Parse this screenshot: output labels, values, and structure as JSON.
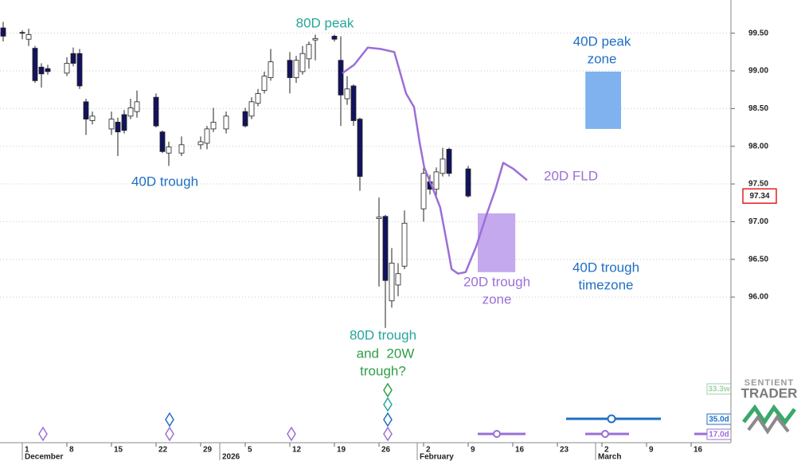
{
  "chart_data": {
    "type": "candlestick",
    "x": [
      -3,
      0,
      1,
      2,
      3,
      4,
      7,
      8,
      9,
      10,
      11,
      14,
      15,
      16,
      17,
      18,
      21,
      22,
      23,
      25,
      28,
      29,
      30,
      32,
      35,
      36,
      37,
      38,
      39,
      42,
      43,
      44,
      45,
      46,
      49,
      50,
      51,
      52,
      53,
      56,
      57,
      58,
      59,
      60,
      63,
      64,
      65,
      66,
      67,
      70
    ],
    "open": [
      99.57,
      99.51,
      99.42,
      99.3,
      99.05,
      99.03,
      98.97,
      99.23,
      99.23,
      98.59,
      98.34,
      98.23,
      98.32,
      98.42,
      98.4,
      98.46,
      98.65,
      98.19,
      97.91,
      97.91,
      98.02,
      98.04,
      98.23,
      98.23,
      98.46,
      98.4,
      98.57,
      98.74,
      98.91,
      99.14,
      98.91,
      98.99,
      99.16,
      99.41,
      99.46,
      99.14,
      98.63,
      98.8,
      98.36,
      97.04,
      97.07,
      95.95,
      96.16,
      96.41,
      97.17,
      97.53,
      97.43,
      97.64,
      97.96,
      97.7
    ],
    "high": [
      99.65,
      99.54,
      99.56,
      99.33,
      99.1,
      99.08,
      99.18,
      99.31,
      99.29,
      98.63,
      98.46,
      98.46,
      98.38,
      98.48,
      98.63,
      98.74,
      98.7,
      98.21,
      98.06,
      98.13,
      98.13,
      98.27,
      98.51,
      98.46,
      98.51,
      98.65,
      98.76,
      98.99,
      99.29,
      99.25,
      99.2,
      99.33,
      99.39,
      99.48,
      99.48,
      99.46,
      98.93,
      98.82,
      98.38,
      97.32,
      97.09,
      96.65,
      96.45,
      97.15,
      97.74,
      97.62,
      97.72,
      97.98,
      97.98,
      97.74
    ],
    "low": [
      99.39,
      99.42,
      99.33,
      98.84,
      98.78,
      98.95,
      98.93,
      99.06,
      98.76,
      98.15,
      98.29,
      98.15,
      97.87,
      98.17,
      98.36,
      98.38,
      98.25,
      97.91,
      97.74,
      97.87,
      97.96,
      97.96,
      98.19,
      98.17,
      98.25,
      98.36,
      98.53,
      98.7,
      98.87,
      98.7,
      98.84,
      98.95,
      99.03,
      99.14,
      99.39,
      98.27,
      98.55,
      98.27,
      97.41,
      96.14,
      95.59,
      95.86,
      96.01,
      96.37,
      97.0,
      97.36,
      97.32,
      97.6,
      97.6,
      97.32
    ],
    "close": [
      99.46,
      99.5,
      99.48,
      98.87,
      98.96,
      98.99,
      99.1,
      99.1,
      98.8,
      98.36,
      98.4,
      98.36,
      98.19,
      98.21,
      98.51,
      98.59,
      98.27,
      97.93,
      97.99,
      98.02,
      98.06,
      98.23,
      98.32,
      98.4,
      98.27,
      98.59,
      98.7,
      98.93,
      99.12,
      98.91,
      99.14,
      99.23,
      99.35,
      99.43,
      99.42,
      98.68,
      98.76,
      98.34,
      97.6,
      97.06,
      96.22,
      96.45,
      96.31,
      96.98,
      97.64,
      97.43,
      97.66,
      97.83,
      97.64,
      97.34
    ],
    "up_color": "#ffffff",
    "down_color": "#12125e",
    "xlim": [
      -3.5,
      111.25
    ],
    "ylim": [
      94.1,
      99.94
    ],
    "grid": true,
    "yticks": [
      {
        "value": 96,
        "label": "96.00"
      },
      {
        "value": 96.5,
        "label": "96.50"
      },
      {
        "value": 97,
        "label": "97.00"
      },
      {
        "value": 97.5,
        "label": "97.50"
      },
      {
        "value": 98,
        "label": "98.00"
      },
      {
        "value": 98.5,
        "label": "98.50"
      },
      {
        "value": 99,
        "label": "99.00"
      },
      {
        "value": 99.5,
        "label": "99.50"
      }
    ],
    "xticks": [
      {
        "value": 0,
        "label": "1"
      },
      {
        "value": 7,
        "label": "8"
      },
      {
        "value": 14,
        "label": "15"
      },
      {
        "value": 21,
        "label": "22"
      },
      {
        "value": 28,
        "label": "29"
      },
      {
        "value": 35,
        "label": "5"
      },
      {
        "value": 42,
        "label": "12"
      },
      {
        "value": 49,
        "label": "19"
      },
      {
        "value": 56,
        "label": "26"
      },
      {
        "value": 63,
        "label": "2"
      },
      {
        "value": 70,
        "label": "9"
      },
      {
        "value": 77,
        "label": "16"
      },
      {
        "value": 84,
        "label": "23"
      },
      {
        "value": 91,
        "label": "2"
      },
      {
        "value": 98,
        "label": "9"
      },
      {
        "value": 105,
        "label": "16"
      }
    ],
    "month_ticks": [
      {
        "value": 0,
        "label": "December"
      },
      {
        "value": 31,
        "label": "2026"
      },
      {
        "value": 62,
        "label": "February"
      },
      {
        "value": 90,
        "label": "March"
      }
    ],
    "last_price": 97.34,
    "fld": {
      "name": "20D FLD",
      "color": "#9b6fd6",
      "x": [
        50.25,
        52.1,
        54.25,
        56.25,
        58.4,
        60.25,
        61.5,
        62.4,
        63.1,
        64.6,
        65.6,
        66.5,
        67.4,
        68.4,
        69.6,
        71.25,
        73.0,
        74.25,
        75.5,
        77.1,
        79.25
      ],
      "values": [
        98.97,
        99.08,
        99.31,
        99.29,
        99.25,
        98.7,
        98.52,
        98.04,
        97.72,
        97.41,
        97.19,
        96.79,
        96.37,
        96.31,
        96.33,
        96.67,
        97.12,
        97.42,
        97.78,
        97.7,
        97.55
      ]
    },
    "zones": [
      {
        "label": [
          "40D peak",
          "zone"
        ],
        "color": "#7fb2ee",
        "xlim": [
          88.4,
          94
        ],
        "ylim": [
          98.23,
          98.99
        ]
      },
      {
        "label": [
          "20D trough",
          "zone"
        ],
        "color": "#c5a9ef",
        "xlim": [
          71.5,
          77.4
        ],
        "ylim": [
          96.33,
          97.11
        ]
      }
    ],
    "annotations": [
      "80D peak",
      "40D trough",
      "80D trough",
      "and  20W",
      "trough?",
      "40D trough",
      "timezone"
    ],
    "cycle_labels": [
      "33.3w",
      "35.0d",
      "17.0d"
    ],
    "logo": [
      "SENTIENT",
      "TRADER"
    ]
  }
}
